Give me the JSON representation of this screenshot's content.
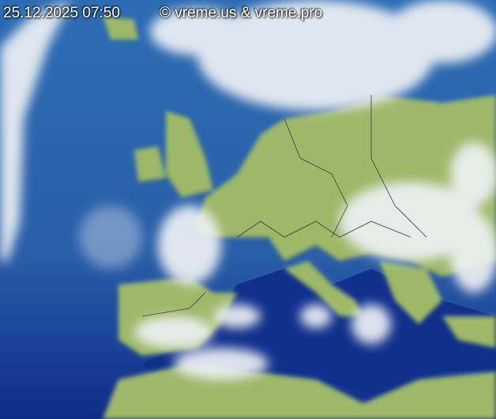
{
  "timestamp": "25.12.2025 07:50",
  "copyright": "© vreme.us & vreme.pro",
  "colors": {
    "sea_deep": "#0d2a86",
    "sea": "#2f6db3",
    "land": "#9cb868",
    "cloud": "#e8ecf0",
    "border": "#3a3a4a"
  }
}
